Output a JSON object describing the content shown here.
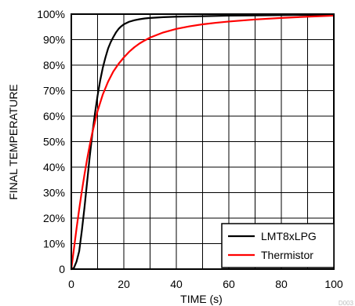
{
  "chart_data": {
    "type": "line",
    "title": "",
    "xlabel": "TIME (s)",
    "ylabel": "FINAL TEMPERATURE",
    "xlim": [
      0,
      100
    ],
    "ylim": [
      0,
      100
    ],
    "x_ticks": [
      0,
      20,
      40,
      60,
      80,
      100
    ],
    "x_tick_labels": [
      "0",
      "20",
      "40",
      "60",
      "80",
      "100"
    ],
    "y_ticks": [
      0,
      10,
      20,
      30,
      40,
      50,
      60,
      70,
      80,
      90,
      100
    ],
    "y_tick_labels": [
      "0",
      "10%",
      "20%",
      "30%",
      "40%",
      "50%",
      "60%",
      "70%",
      "80%",
      "90%",
      "100%"
    ],
    "grid": true,
    "legend_position": "bottom-right",
    "figure_id": "D003",
    "series": [
      {
        "name": "LMT8xLPG",
        "color": "#000000",
        "x": [
          0,
          1,
          2,
          3,
          4,
          5,
          6,
          7,
          8,
          9,
          10,
          11,
          12,
          13,
          14,
          15,
          16,
          17,
          18,
          19,
          20,
          22,
          24,
          26,
          28,
          30,
          35,
          40,
          50,
          60,
          70,
          80,
          90,
          100
        ],
        "y": [
          0,
          0.5,
          3,
          7,
          15,
          24,
          34,
          44,
          53,
          61,
          68,
          74,
          79,
          83,
          86.5,
          89,
          91,
          92.8,
          94.2,
          95.2,
          96,
          97,
          97.6,
          98,
          98.3,
          98.5,
          98.8,
          99,
          99.2,
          99.4,
          99.5,
          99.6,
          99.7,
          99.8
        ]
      },
      {
        "name": "Thermistor",
        "color": "#ff0000",
        "x": [
          0,
          1,
          2,
          3,
          4,
          5,
          6,
          7,
          8,
          10,
          12,
          14,
          16,
          18,
          20,
          22,
          24,
          26,
          28,
          30,
          35,
          40,
          45,
          50,
          55,
          60,
          70,
          80,
          90,
          100
        ],
        "y": [
          0,
          8,
          16,
          23.5,
          30.5,
          37,
          43,
          48.5,
          53.5,
          62,
          68.5,
          73.5,
          77.5,
          80.5,
          83,
          85.2,
          87,
          88.5,
          89.7,
          90.8,
          92.8,
          94.2,
          95.2,
          96,
          96.6,
          97.1,
          97.9,
          98.5,
          99,
          99.4
        ]
      }
    ]
  }
}
